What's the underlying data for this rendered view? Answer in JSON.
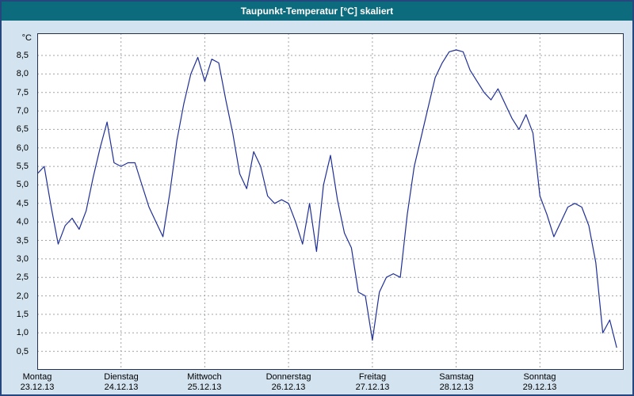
{
  "window": {
    "title": "Taupunkt-Temperatur [°C] skaliert"
  },
  "colors": {
    "title_bar_bg": "#0c6b7d",
    "title_text": "#ffffff",
    "outer_bg": "#d3e3f0",
    "plot_bg": "#ffffff",
    "grid_line": "#9fa4a9",
    "series_line": "#1f2f96",
    "plot_border": "#26304d",
    "axis_text": "#000000",
    "window_border": "#26477e"
  },
  "chart_data": {
    "type": "line",
    "title": "Taupunkt-Temperatur [°C] skaliert",
    "unit_label": "°C",
    "ylabel": "Taupunkt-Temperatur [°C]",
    "xlabel": "",
    "ylim": [
      0,
      9.1
    ],
    "grid": "dashed",
    "legend": "none",
    "yticks": [
      {
        "label": "8,5",
        "value": 8.5
      },
      {
        "label": "8,0",
        "value": 8.0
      },
      {
        "label": "7,5",
        "value": 7.5
      },
      {
        "label": "7,0",
        "value": 7.0
      },
      {
        "label": "6,5",
        "value": 6.5
      },
      {
        "label": "6,0",
        "value": 6.0
      },
      {
        "label": "5,5",
        "value": 5.5
      },
      {
        "label": "5,0",
        "value": 5.0
      },
      {
        "label": "4,5",
        "value": 4.5
      },
      {
        "label": "4,0",
        "value": 4.0
      },
      {
        "label": "3,5",
        "value": 3.5
      },
      {
        "label": "3,0",
        "value": 3.0
      },
      {
        "label": "2,5",
        "value": 2.5
      },
      {
        "label": "2,0",
        "value": 2.0
      },
      {
        "label": "1,5",
        "value": 1.5
      },
      {
        "label": "1,0",
        "value": 1.0
      },
      {
        "label": "0,5",
        "value": 0.5
      }
    ],
    "x_days": [
      {
        "name": "Montag",
        "date": "23.12.13"
      },
      {
        "name": "Dienstag",
        "date": "24.12.13"
      },
      {
        "name": "Mittwoch",
        "date": "25.12.13"
      },
      {
        "name": "Donnerstag",
        "date": "26.12.13"
      },
      {
        "name": "Freitag",
        "date": "27.12.13"
      },
      {
        "name": "Samstag",
        "date": "28.12.13"
      },
      {
        "name": "Sonntag",
        "date": "29.12.13"
      }
    ],
    "hours_per_point": 2,
    "values": [
      5.3,
      5.5,
      4.4,
      3.4,
      3.9,
      4.1,
      3.8,
      4.3,
      5.2,
      6.0,
      6.7,
      5.6,
      5.5,
      5.6,
      5.6,
      5.0,
      4.4,
      4.0,
      3.6,
      4.8,
      6.2,
      7.2,
      8.0,
      8.45,
      7.8,
      8.4,
      8.3,
      7.3,
      6.4,
      5.3,
      4.9,
      5.9,
      5.5,
      4.7,
      4.5,
      4.6,
      4.5,
      4.0,
      3.4,
      4.5,
      3.2,
      5.0,
      5.8,
      4.6,
      3.7,
      3.3,
      2.1,
      2.0,
      0.8,
      2.1,
      2.5,
      2.6,
      2.5,
      4.2,
      5.5,
      6.3,
      7.1,
      7.9,
      8.3,
      8.6,
      8.65,
      8.6,
      8.1,
      7.8,
      7.5,
      7.3,
      7.6,
      7.2,
      6.8,
      6.5,
      6.9,
      6.4,
      4.7,
      4.2,
      3.6,
      4.0,
      4.4,
      4.5,
      4.4,
      3.9,
      2.9,
      1.0,
      1.35,
      0.6
    ]
  }
}
